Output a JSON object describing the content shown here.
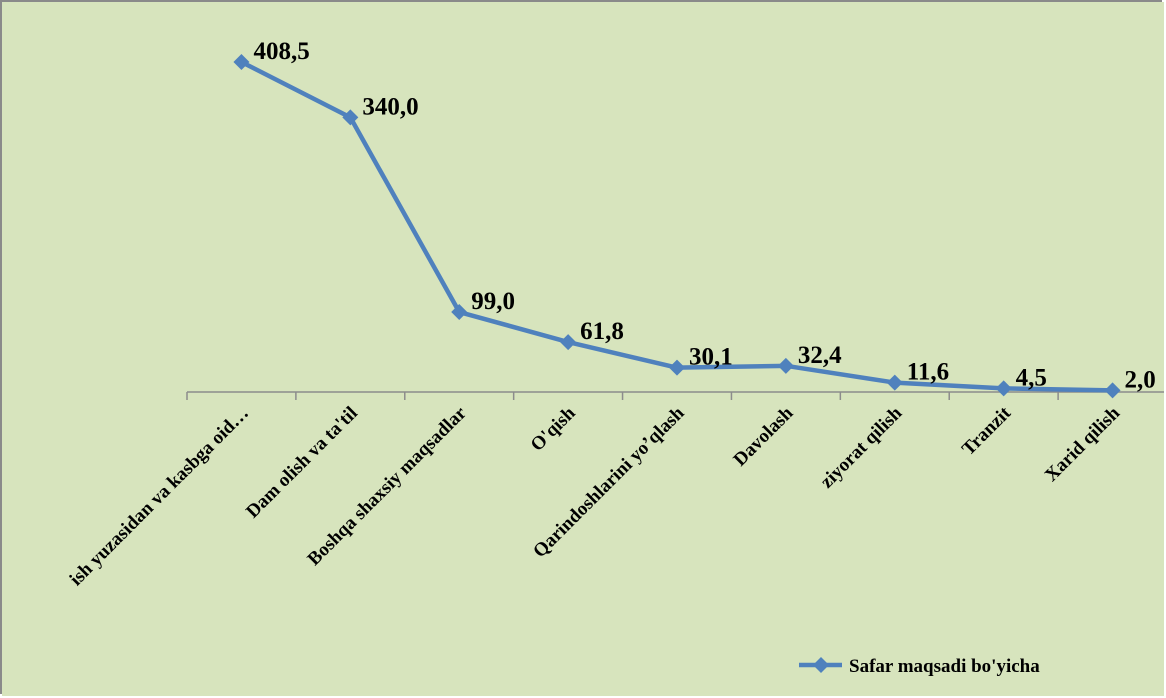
{
  "colors": {
    "plot_background": "#d7e4bd",
    "series_line": "#4f81bd",
    "axis_line": "#8c8c8c"
  },
  "chart_data": {
    "type": "line",
    "title": "",
    "xlabel": "",
    "ylabel": "",
    "categories": [
      "ish yuzasidan va kasbga oid…",
      "Dam olish va ta'til",
      "Boshqa shaxsiy maqsadlar",
      "O'qish",
      "Qarindoshlarini yo’qlash",
      "Davolash",
      "ziyorat qilish",
      "Tranzit",
      "Xarid qilish"
    ],
    "series": [
      {
        "name": "Safar  maqsadi bo'yicha",
        "values": [
          408.5,
          340.0,
          99.0,
          61.8,
          30.1,
          32.4,
          11.6,
          4.5,
          2.0
        ],
        "data_labels": [
          "408,5",
          "340,0",
          "99,0",
          "61,8",
          "30,1",
          "32,4",
          "11,6",
          "4,5",
          "2,0"
        ],
        "marker": "diamond"
      }
    ],
    "ylim": [
      0,
      450
    ],
    "y_axis_visible": false,
    "grid": false,
    "legend_position": "bottom-right"
  }
}
